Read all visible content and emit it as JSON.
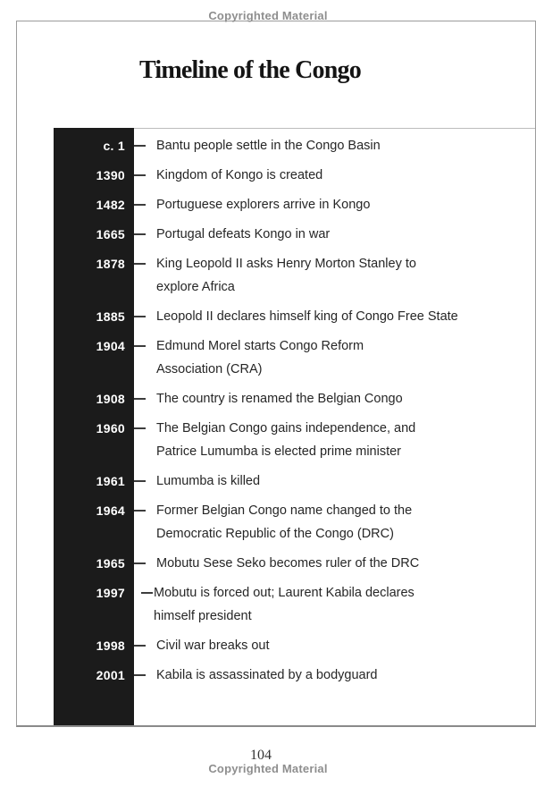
{
  "page": {
    "copyright_top": "Copyrighted Material",
    "copyright_bottom": "Copyrighted Material",
    "page_number": "104",
    "title": "Timeline of the Congo"
  },
  "timeline": {
    "events": [
      {
        "year": "c. 1",
        "text": "Bantu people settle in the Congo Basin"
      },
      {
        "year": "1390",
        "text": "Kingdom of Kongo is created"
      },
      {
        "year": "1482",
        "text": "Portuguese explorers arrive in Kongo"
      },
      {
        "year": "1665",
        "text": "Portugal defeats Kongo in war"
      },
      {
        "year": "1878",
        "text": "King Leopold II asks Henry Morton Stanley to\nexplore Africa"
      },
      {
        "year": "1885",
        "text": "Leopold II declares himself king of Congo Free State"
      },
      {
        "year": "1904",
        "text": "Edmund Morel starts Congo Reform\nAssociation (CRA)"
      },
      {
        "year": "1908",
        "text": "The country is renamed the Belgian Congo"
      },
      {
        "year": "1960",
        "text": "The Belgian Congo gains independence, and\nPatrice Lumumba is elected prime minister"
      },
      {
        "year": "1961",
        "text": "Lumumba is killed"
      },
      {
        "year": "1964",
        "text": "Former Belgian Congo name changed to the\nDemocratic Republic of the Congo (DRC)"
      },
      {
        "year": "1965",
        "text": "Mobutu Sese Seko becomes ruler of the DRC"
      },
      {
        "year": "1997",
        "text": "Mobutu is forced out; Laurent Kabila declares\nhimself president",
        "offset": true
      },
      {
        "year": "1998",
        "text": "Civil war breaks out"
      },
      {
        "year": "2001",
        "text": "Kabila is assassinated by a bodyguard"
      }
    ]
  },
  "colors": {
    "timeline_bar": "#1b1b1b",
    "year_text": "#ffffff",
    "event_text": "#262626",
    "copyright_text": "#8e8e8e",
    "page_border": "#9c9c9c",
    "tick": "#3d3d3d"
  }
}
